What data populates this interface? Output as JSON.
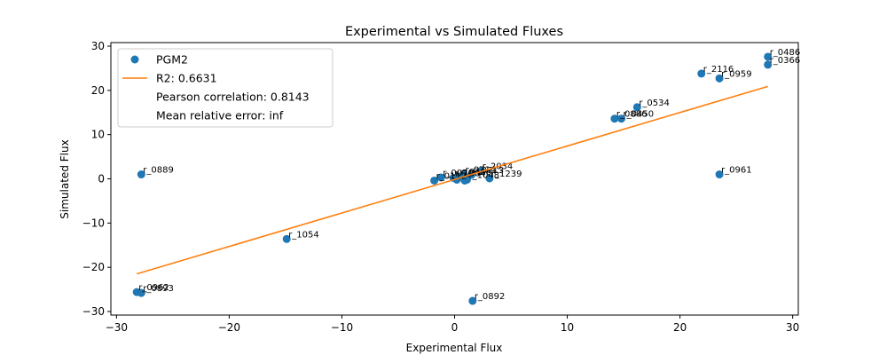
{
  "chart_data": {
    "type": "scatter",
    "title": "Experimental vs Simulated Fluxes",
    "xlabel": "Experimental Flux",
    "ylabel": "Simulated Flux",
    "xlim": [
      -30.5,
      30.5
    ],
    "ylim": [
      -30.8,
      30.8
    ],
    "xticks": [
      -30,
      -20,
      -10,
      0,
      10,
      20,
      30
    ],
    "yticks": [
      -30,
      -20,
      -10,
      0,
      10,
      20,
      30
    ],
    "xtick_labels": [
      "−30",
      "−20",
      "−10",
      "0",
      "10",
      "20",
      "30"
    ],
    "ytick_labels": [
      "−30",
      "−20",
      "−10",
      "0",
      "10",
      "20",
      "30"
    ],
    "grid": false,
    "legend_position": "top-left",
    "colors": {
      "points": "#1f77b4",
      "fit": "#ff7f0e"
    },
    "legend": [
      {
        "type": "marker",
        "label": "PGM2"
      },
      {
        "type": "line",
        "label": "R2: 0.6631"
      },
      {
        "type": "none",
        "label": "Pearson correlation: 0.8143"
      },
      {
        "type": "none",
        "label": "Mean relative error: inf"
      }
    ],
    "fit_line": {
      "x": [
        -28.2,
        27.8
      ],
      "y": [
        -21.5,
        20.9
      ]
    },
    "points": [
      {
        "x": 27.8,
        "y": 27.6,
        "label": "r_0486"
      },
      {
        "x": 27.8,
        "y": 25.8,
        "label": "r_0366"
      },
      {
        "x": 21.9,
        "y": 23.8,
        "label": "r_2116"
      },
      {
        "x": 23.5,
        "y": 22.7,
        "label": "r_0959"
      },
      {
        "x": 16.2,
        "y": 16.2,
        "label": "r_0534"
      },
      {
        "x": 14.2,
        "y": 13.6,
        "label": "r_0886"
      },
      {
        "x": 14.8,
        "y": 13.6,
        "label": "r_0450"
      },
      {
        "x": -27.8,
        "y": 1.0,
        "label": "r_0889"
      },
      {
        "x": 23.5,
        "y": 1.0,
        "label": "r_0961"
      },
      {
        "x": -14.9,
        "y": -13.6,
        "label": "r_1054"
      },
      {
        "x": -28.2,
        "y": -25.6,
        "label": "r_0962"
      },
      {
        "x": -27.8,
        "y": -25.8,
        "label": "r_0893"
      },
      {
        "x": 1.6,
        "y": -27.6,
        "label": "r_0892"
      },
      {
        "x": 3.1,
        "y": 0.1,
        "label": "r_1239"
      },
      {
        "x": 2.3,
        "y": 1.8,
        "label": "r_2034"
      },
      {
        "x": 1.5,
        "y": 0.9,
        "label": "r_0713"
      },
      {
        "x": 0.8,
        "y": 1.0,
        "label": "r_0714"
      },
      {
        "x": -0.1,
        "y": 0.2,
        "label": "r_1084"
      },
      {
        "x": 0.4,
        "y": 0.5,
        "label": "r_0466"
      },
      {
        "x": -1.2,
        "y": 0.3,
        "label": "r_0070"
      },
      {
        "x": 1.1,
        "y": -0.2,
        "label": "r_1048"
      },
      {
        "x": -1.8,
        "y": -0.4,
        "label": "r_0112"
      },
      {
        "x": 0.9,
        "y": -0.4,
        "label": ""
      },
      {
        "x": 0.2,
        "y": -0.2,
        "label": ""
      }
    ]
  }
}
